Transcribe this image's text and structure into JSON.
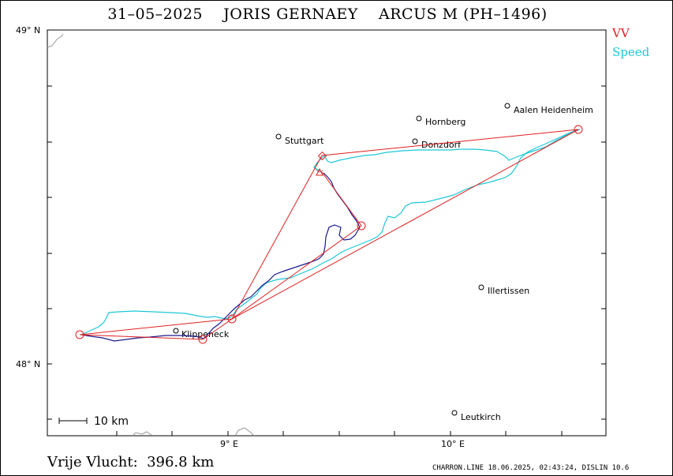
{
  "title": "31–05–2025    JORIS GERNAEY    ARCUS M (PH–1496)",
  "legend": [
    {
      "label": "VV",
      "color": "#e02020"
    },
    {
      "label": "Speed",
      "color": "#1ec8d8"
    }
  ],
  "axes": {
    "lat_labels": [
      {
        "text": "49° N"
      },
      {
        "text": "48° N"
      }
    ],
    "lon_labels": [
      {
        "text": "9° E"
      },
      {
        "text": "10° E"
      }
    ]
  },
  "scale_bar": {
    "label": "10  km"
  },
  "cities": [
    {
      "name": "Aalen Heidenheim"
    },
    {
      "name": "Hornberg"
    },
    {
      "name": "Stuttgart"
    },
    {
      "name": "Donzdorf"
    },
    {
      "name": "Illertissen"
    },
    {
      "name": "Klippeneck"
    },
    {
      "name": "Leutkirch"
    }
  ],
  "footer": {
    "distance": "Vrije Vlucht:  396.8 km",
    "credit": "CHARRON.LINE 18.06.2025, 02:43:24, DISLIN 10.6"
  },
  "colors": {
    "task_line": "#e02020",
    "track_speed": "#1ec8d8",
    "track_climb": "#1a1a8c",
    "border": "#999999"
  }
}
